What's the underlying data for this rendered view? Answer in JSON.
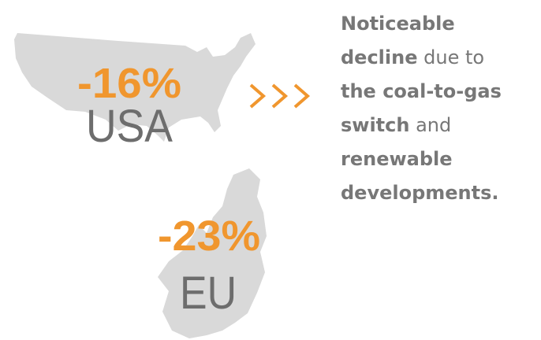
{
  "regions": [
    {
      "change": "-16%",
      "name": "USA"
    },
    {
      "change": "-23%",
      "name": "EU"
    }
  ],
  "description": {
    "lines": [
      [
        {
          "text": "Noticeable",
          "bold": true
        }
      ],
      [
        {
          "text": "decline",
          "bold": true
        },
        {
          "text": " due to",
          "bold": false
        }
      ],
      [
        {
          "text": "the coal-to-gas",
          "bold": true
        }
      ],
      [
        {
          "text": "switch",
          "bold": true
        },
        {
          "text": " and",
          "bold": false
        }
      ],
      [
        {
          "text": "renewable",
          "bold": true
        }
      ],
      [
        {
          "text": "developments.",
          "bold": true
        }
      ]
    ]
  }
}
